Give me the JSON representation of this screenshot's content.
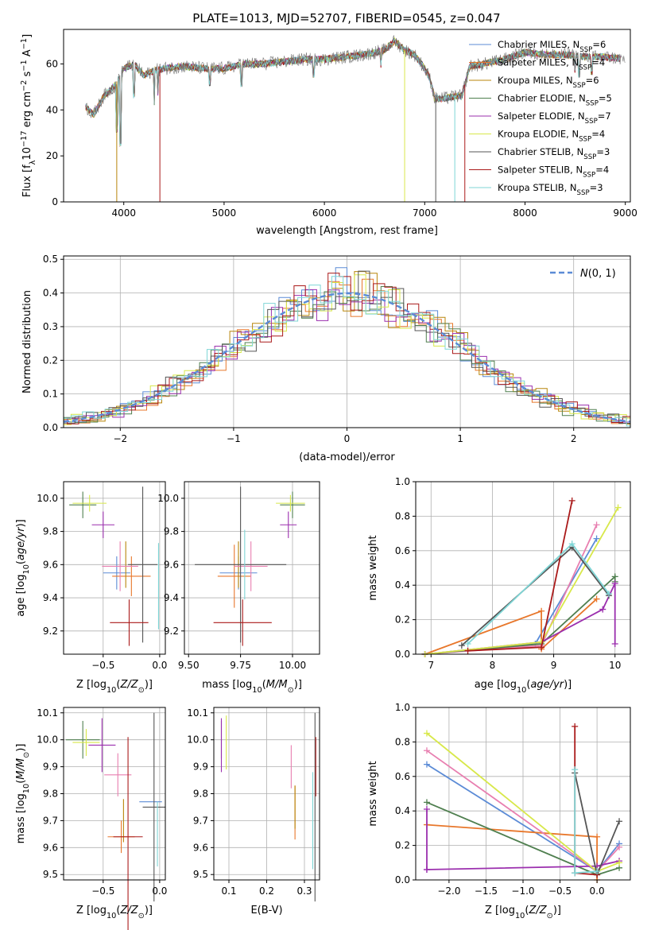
{
  "title": "PLATE=1013, MJD=52707, FIBERID=0545, z=0.047",
  "colors": {
    "Chabrier MILES": "#5b8bd6",
    "Salpeter MILES": "#e8772b",
    "Kroupa MILES": "#b8860b",
    "Chabrier ELODIE": "#4f7f4f",
    "Salpeter ELODIE": "#9b2fae",
    "Kroupa ELODIE": "#d8e84a",
    "Chabrier STELIB": "#555555",
    "Salpeter STELIB": "#aa1a1a",
    "Kroupa STELIB": "#7fd6d6",
    "pink": "#e87fb0",
    "normal": "#5b8bd6"
  },
  "chart_data": [
    {
      "id": "spectrum",
      "type": "line",
      "xlabel": "wavelength [Angstrom, rest frame]",
      "ylabel": "Flux [f_λ10^-17 erg cm^-2 s^-1 A^-1]",
      "ylabel_parts": [
        "Flux [f",
        "λ",
        "10",
        "−17",
        " erg cm",
        "−2",
        " s",
        "−1",
        " A",
        "−1",
        "]"
      ],
      "xlim": [
        3400,
        9050
      ],
      "ylim": [
        0,
        75
      ],
      "xticks": [
        4000,
        5000,
        6000,
        7000,
        8000,
        9000
      ],
      "yticks": [
        0,
        20,
        40,
        60
      ],
      "legend_position": "right",
      "legend": [
        {
          "model": "Chabrier MILES",
          "nssp": "6"
        },
        {
          "model": "Salpeter MILES",
          "nssp": "4"
        },
        {
          "model": "Kroupa MILES",
          "nssp": "6"
        },
        {
          "model": "Chabrier ELODIE",
          "nssp": "5"
        },
        {
          "model": "Salpeter ELODIE",
          "nssp": "7"
        },
        {
          "model": "Kroupa ELODIE",
          "nssp": "4"
        },
        {
          "model": "Chabrier STELIB",
          "nssp": "3"
        },
        {
          "model": "Salpeter STELIB",
          "nssp": "4"
        },
        {
          "model": "Kroupa STELIB",
          "nssp": "3"
        }
      ],
      "nssp_label": "N",
      "nssp_sub": "SSP",
      "continuum": [
        [
          3600,
          42
        ],
        [
          3650,
          40
        ],
        [
          3700,
          38
        ],
        [
          3800,
          46
        ],
        [
          3900,
          50
        ],
        [
          4000,
          58
        ],
        [
          4100,
          60
        ],
        [
          4200,
          55
        ],
        [
          4300,
          57
        ],
        [
          4400,
          58
        ],
        [
          4600,
          59
        ],
        [
          4800,
          58
        ],
        [
          5000,
          58
        ],
        [
          5200,
          60
        ],
        [
          5400,
          60
        ],
        [
          5600,
          61
        ],
        [
          5800,
          62
        ],
        [
          6000,
          62
        ],
        [
          6200,
          63
        ],
        [
          6400,
          64
        ],
        [
          6600,
          66
        ],
        [
          6700,
          70
        ],
        [
          6800,
          66
        ],
        [
          6900,
          64
        ],
        [
          7000,
          58
        ],
        [
          7050,
          54
        ],
        [
          7100,
          45
        ],
        [
          7200,
          45
        ],
        [
          7300,
          46
        ],
        [
          7370,
          46
        ],
        [
          7450,
          59
        ],
        [
          7600,
          60
        ],
        [
          7800,
          62
        ],
        [
          8000,
          65
        ],
        [
          8200,
          64
        ],
        [
          8400,
          64
        ],
        [
          8600,
          63
        ],
        [
          8800,
          63
        ],
        [
          9000,
          62
        ]
      ],
      "dips": [
        {
          "x": 3934,
          "to": 30
        },
        {
          "x": 3969,
          "to": 24
        },
        {
          "x": 4101,
          "to": 45
        },
        {
          "x": 4304,
          "to": 42
        },
        {
          "x": 4340,
          "to": 46
        },
        {
          "x": 4861,
          "to": 50
        },
        {
          "x": 5175,
          "to": 50
        },
        {
          "x": 5890,
          "to": 54
        },
        {
          "x": 6563,
          "to": 58
        },
        {
          "x": 8498,
          "to": 56
        },
        {
          "x": 8542,
          "to": 54
        },
        {
          "x": 8662,
          "to": 55
        }
      ],
      "drops": [
        {
          "series": "Kroupa MILES",
          "x": 3930
        },
        {
          "series": "Kroupa ELODIE",
          "x": 6800
        },
        {
          "series": "Salpeter STELIB",
          "x": 7400
        },
        {
          "series": "Chabrier STELIB",
          "x": 7110
        },
        {
          "series": "Kroupa STELIB",
          "x": 7300
        },
        {
          "series": "Salpeter STELIB",
          "x": 4360
        }
      ]
    },
    {
      "id": "residuals",
      "type": "step",
      "xlabel": "(data-model)/error",
      "ylabel": "Normed distribution",
      "xlim": [
        -2.5,
        2.5
      ],
      "ylim": [
        0,
        0.51
      ],
      "xticks": [
        -2,
        -1,
        0,
        1,
        2
      ],
      "yticks": [
        0.0,
        0.1,
        0.2,
        0.3,
        0.4,
        0.5
      ],
      "grid": true,
      "legend": [
        {
          "name": "N(0,1)",
          "style": "dashed"
        }
      ],
      "legend_position": "top-right",
      "bin_width": 0.1
    },
    {
      "id": "age_vs_Z",
      "type": "errorbar",
      "xlabel": "Z [log10(Z/Z⊙)]",
      "ylabel": "age [log10(age/yr)]",
      "xlim": [
        -0.85,
        0.05
      ],
      "ylim": [
        9.06,
        10.1
      ],
      "xticks": [
        -0.5,
        0.0
      ],
      "yticks": [
        9.2,
        9.4,
        9.6,
        9.8,
        10.0
      ],
      "points": [
        {
          "series": "Chabrier MILES",
          "x": -0.38,
          "y": 9.55,
          "xerr": 0.12,
          "yerr": 0.1
        },
        {
          "series": "Salpeter MILES",
          "x": -0.25,
          "y": 9.53,
          "xerr": 0.17,
          "yerr": 0.12
        },
        {
          "series": "Kroupa MILES",
          "x": -0.3,
          "y": 9.6,
          "xerr": 0.0,
          "yerr": 0.14
        },
        {
          "series": "pink",
          "x": -0.35,
          "y": 9.59,
          "xerr": 0.16,
          "yerr": 0.15
        },
        {
          "series": "Chabrier ELODIE",
          "x": -0.68,
          "y": 9.96,
          "xerr": 0.12,
          "yerr": 0.08
        },
        {
          "series": "Salpeter ELODIE",
          "x": -0.5,
          "y": 9.84,
          "xerr": 0.1,
          "yerr": 0.08
        },
        {
          "series": "Kroupa ELODIE",
          "x": -0.62,
          "y": 9.97,
          "xerr": 0.15,
          "yerr": 0.05
        },
        {
          "series": "Chabrier STELIB",
          "x": -0.15,
          "y": 9.6,
          "xerr": 0.13,
          "yerr": 0.47
        },
        {
          "series": "Salpeter STELIB",
          "x": -0.27,
          "y": 9.25,
          "xerr": 0.17,
          "yerr": 0.14
        },
        {
          "series": "Kroupa STELIB",
          "x": -0.01,
          "y": 9.47,
          "xerr": 0.0,
          "yerr": 0.26
        }
      ]
    },
    {
      "id": "age_vs_mass",
      "type": "errorbar",
      "xlabel": "mass [log10(M/M⊙)]",
      "ylabel": "",
      "xlim": [
        9.48,
        10.13
      ],
      "ylim": [
        9.06,
        10.1
      ],
      "xticks": [
        9.5,
        9.75,
        10.0
      ],
      "yticks": [
        9.2,
        9.4,
        9.6,
        9.8,
        10.0
      ],
      "points": [
        {
          "series": "Chabrier MILES",
          "x": 9.74,
          "y": 9.55,
          "xerr": 0.09,
          "yerr": 0.1
        },
        {
          "series": "Salpeter MILES",
          "x": 9.72,
          "y": 9.53,
          "xerr": 0.08,
          "yerr": 0.19
        },
        {
          "series": "Kroupa MILES",
          "x": 9.74,
          "y": 9.6,
          "xerr": 0.0,
          "yerr": 0.14
        },
        {
          "series": "pink",
          "x": 9.8,
          "y": 9.59,
          "xerr": 0.08,
          "yerr": 0.15
        },
        {
          "series": "Chabrier ELODIE",
          "x": 10.0,
          "y": 9.96,
          "xerr": 0.06,
          "yerr": 0.08
        },
        {
          "series": "Salpeter ELODIE",
          "x": 9.98,
          "y": 9.84,
          "xerr": 0.04,
          "yerr": 0.08
        },
        {
          "series": "Kroupa ELODIE",
          "x": 9.99,
          "y": 9.97,
          "xerr": 0.07,
          "yerr": 0.05
        },
        {
          "series": "Chabrier STELIB",
          "x": 9.75,
          "y": 9.6,
          "xerr": 0.22,
          "yerr": 0.47
        },
        {
          "series": "Salpeter STELIB",
          "x": 9.76,
          "y": 9.25,
          "xerr": 0.14,
          "yerr": 0.14
        },
        {
          "series": "Kroupa STELIB",
          "x": 9.77,
          "y": 9.6,
          "xerr": 0.0,
          "yerr": 0.21
        }
      ]
    },
    {
      "id": "massweight_vs_age",
      "type": "line",
      "xlabel": "age [log10(age/yr)]",
      "ylabel": "mass weight",
      "xlim": [
        6.75,
        10.25
      ],
      "ylim": [
        0,
        1.0
      ],
      "xticks": [
        7,
        8,
        9,
        10
      ],
      "yticks": [
        0.0,
        0.2,
        0.4,
        0.6,
        0.8,
        1.0
      ],
      "grid": true,
      "series": [
        {
          "series": "Chabrier MILES",
          "x": [
            6.9,
            8.7,
            9.7
          ],
          "y": [
            0.0,
            0.06,
            0.67
          ]
        },
        {
          "series": "Salpeter MILES",
          "x": [
            6.9,
            8.8,
            8.8,
            9.7
          ],
          "y": [
            0.0,
            0.25,
            0.03,
            0.32
          ]
        },
        {
          "series": "pink",
          "x": [
            6.9,
            8.8,
            9.7
          ],
          "y": [
            0.0,
            0.05,
            0.75
          ]
        },
        {
          "series": "Chabrier ELODIE",
          "x": [
            6.9,
            8.8,
            10.0,
            10.0
          ],
          "y": [
            0.0,
            0.06,
            0.45,
            0.42
          ]
        },
        {
          "series": "Salpeter ELODIE",
          "x": [
            6.9,
            8.8,
            9.8,
            10.0,
            10.0
          ],
          "y": [
            0.0,
            0.07,
            0.26,
            0.41,
            0.06
          ]
        },
        {
          "series": "Kroupa ELODIE",
          "x": [
            6.9,
            8.8,
            10.05
          ],
          "y": [
            0.0,
            0.07,
            0.85
          ]
        },
        {
          "series": "Chabrier STELIB",
          "x": [
            7.5,
            9.3,
            9.9
          ],
          "y": [
            0.05,
            0.62,
            0.34
          ]
        },
        {
          "series": "Salpeter STELIB",
          "x": [
            7.6,
            8.8,
            9.3
          ],
          "y": [
            0.02,
            0.04,
            0.89
          ]
        },
        {
          "series": "Kroupa STELIB",
          "x": [
            7.6,
            9.3,
            9.9
          ],
          "y": [
            0.06,
            0.64,
            0.35
          ]
        }
      ]
    },
    {
      "id": "mass_vs_Z",
      "type": "errorbar",
      "xlabel": "Z [log10(Z/Z⊙)]",
      "ylabel": "mass [log10(M/M⊙)]",
      "xlim": [
        -0.85,
        0.05
      ],
      "ylim": [
        9.48,
        10.12
      ],
      "xticks": [
        -0.5,
        0.0
      ],
      "yticks": [
        9.5,
        9.6,
        9.7,
        9.8,
        9.9,
        10.0,
        10.1
      ],
      "points": [
        {
          "series": "Chabrier MILES",
          "x": -0.08,
          "y": 9.77,
          "xerr": 0.1,
          "yerr": 0.0
        },
        {
          "series": "Salpeter MILES",
          "x": -0.34,
          "y": 9.64,
          "xerr": 0.12,
          "yerr": 0.06
        },
        {
          "series": "Kroupa MILES",
          "x": -0.32,
          "y": 9.7,
          "xerr": 0.0,
          "yerr": 0.08
        },
        {
          "series": "pink",
          "x": -0.37,
          "y": 9.87,
          "xerr": 0.12,
          "yerr": 0.08
        },
        {
          "series": "Chabrier ELODIE",
          "x": -0.68,
          "y": 10.0,
          "xerr": 0.15,
          "yerr": 0.07
        },
        {
          "series": "Salpeter ELODIE",
          "x": -0.51,
          "y": 9.98,
          "xerr": 0.12,
          "yerr": 0.1
        },
        {
          "series": "Kroupa ELODIE",
          "x": -0.65,
          "y": 9.99,
          "xerr": 0.12,
          "yerr": 0.05
        },
        {
          "series": "Chabrier STELIB",
          "x": -0.05,
          "y": 9.75,
          "xerr": 0.1,
          "yerr": 0.35
        },
        {
          "series": "Salpeter STELIB",
          "x": -0.28,
          "y": 9.64,
          "xerr": 0.13,
          "yerr": 0.37
        },
        {
          "series": "Kroupa STELIB",
          "x": -0.02,
          "y": 9.65,
          "xerr": 0.0,
          "yerr": 0.12
        }
      ]
    },
    {
      "id": "mass_vs_ebv",
      "type": "errorbar",
      "xlabel": "E(B-V)",
      "ylabel": "",
      "xlim": [
        0.06,
        0.34
      ],
      "ylim": [
        9.48,
        10.12
      ],
      "xticks": [
        0.1,
        0.2,
        0.3
      ],
      "yticks": [
        9.5,
        9.6,
        9.7,
        9.8,
        9.9,
        10.0,
        10.1
      ],
      "points": [
        {
          "series": "Chabrier MILES",
          "x": 0.325,
          "y": 9.77,
          "xerr": 0,
          "yerr": 0.0
        },
        {
          "series": "Salpeter MILES",
          "x": 0.275,
          "y": 9.73,
          "xerr": 0,
          "yerr": 0.1
        },
        {
          "series": "Kroupa MILES",
          "x": 0.275,
          "y": 9.75,
          "xerr": 0,
          "yerr": 0.08
        },
        {
          "series": "pink",
          "x": 0.265,
          "y": 9.9,
          "xerr": 0,
          "yerr": 0.08
        },
        {
          "series": "Chabrier ELODIE",
          "x": 0.08,
          "y": 10.0,
          "xerr": 0,
          "yerr": 0.07
        },
        {
          "series": "Salpeter ELODIE",
          "x": 0.08,
          "y": 9.98,
          "xerr": 0,
          "yerr": 0.1
        },
        {
          "series": "Kroupa ELODIE",
          "x": 0.093,
          "y": 9.99,
          "xerr": 0,
          "yerr": 0.1
        },
        {
          "series": "Chabrier STELIB",
          "x": 0.328,
          "y": 9.75,
          "xerr": 0,
          "yerr": 0.35
        },
        {
          "series": "Salpeter STELIB",
          "x": 0.33,
          "y": 9.9,
          "xerr": 0,
          "yerr": 0.11
        },
        {
          "series": "Kroupa STELIB",
          "x": 0.322,
          "y": 9.7,
          "xerr": 0,
          "yerr": 0.18
        }
      ]
    },
    {
      "id": "massweight_vs_Z",
      "type": "line",
      "xlabel": "Z [log10(Z/Z⊙)]",
      "ylabel": "mass weight",
      "xlim": [
        -2.45,
        0.45
      ],
      "ylim": [
        0,
        1.0
      ],
      "xticks": [
        -2.0,
        -1.5,
        -1.0,
        -0.5,
        0.0
      ],
      "yticks": [
        0.0,
        0.2,
        0.4,
        0.6,
        0.8,
        1.0
      ],
      "grid": true,
      "series": [
        {
          "series": "Chabrier MILES",
          "x": [
            -2.3,
            0.0,
            0.3
          ],
          "y": [
            0.67,
            0.05,
            0.21
          ]
        },
        {
          "series": "Salpeter MILES",
          "x": [
            -2.3,
            0.0,
            0.0
          ],
          "y": [
            0.32,
            0.25,
            0.0
          ]
        },
        {
          "series": "pink",
          "x": [
            -2.3,
            0.0,
            0.3
          ],
          "y": [
            0.75,
            0.05,
            0.19
          ]
        },
        {
          "series": "Chabrier ELODIE",
          "x": [
            -2.3,
            0.0,
            0.3
          ],
          "y": [
            0.45,
            0.03,
            0.07
          ]
        },
        {
          "series": "Salpeter ELODIE",
          "x": [
            -2.3,
            -2.3,
            -2.3,
            0.0,
            0.3
          ],
          "y": [
            0.41,
            0.06,
            0.06,
            0.08,
            0.11
          ]
        },
        {
          "series": "Kroupa ELODIE",
          "x": [
            -2.3,
            0.0,
            0.3
          ],
          "y": [
            0.85,
            0.05,
            0.1
          ]
        },
        {
          "series": "Chabrier STELIB",
          "x": [
            -0.3,
            0.0,
            0.3
          ],
          "y": [
            0.62,
            0.03,
            0.34
          ]
        },
        {
          "series": "Salpeter STELIB",
          "x": [
            -0.3,
            -0.3,
            0.0
          ],
          "y": [
            0.89,
            0.04,
            0.03
          ]
        },
        {
          "series": "Kroupa STELIB",
          "x": [
            -0.3,
            -0.3,
            0.0
          ],
          "y": [
            0.64,
            0.04,
            0.05
          ]
        }
      ]
    }
  ]
}
